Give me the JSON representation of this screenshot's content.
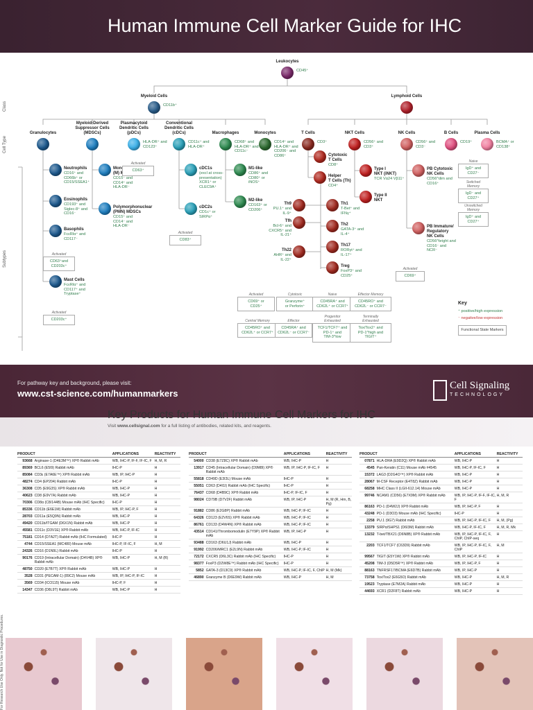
{
  "header": {
    "title": "Human Immune Cell Marker Guide for IHC"
  },
  "sidebar": [
    "Class",
    "Cell Type",
    "Subtypes"
  ],
  "nodes": [
    {
      "label": "Leukocytes",
      "markers": "CD45⁺",
      "color": "#7a2a6a"
    },
    {
      "label": "Myeloid Cells",
      "markers": "CD11b⁺",
      "color": "#2a5d8a"
    },
    {
      "label": "Lymphoid Cells",
      "markers": "",
      "color": "#b0202a"
    },
    {
      "label": "Granulocytes",
      "markers": "",
      "color": "#1e5a8e"
    },
    {
      "label": "Myeloid-Derived\nSuppressor Cells\n(MDSCs)",
      "markers": "",
      "color": "#1f7fc0"
    },
    {
      "label": "Plasmacytoid\nDendritic Cells\n(pDCs)",
      "markers": "HLA-DR⁺ and\nCD123⁺",
      "color": "#3bb0e8"
    },
    {
      "label": "Conventional\nDendritic Cells\n(cDCs)",
      "markers": "CD11c⁺ and\nHLA-DR⁺",
      "color": "#2aa0b8"
    },
    {
      "label": "Macrophages",
      "markers": "CD68⁺ and\nHLA-DR⁺ and\nCD11c⁻",
      "color": "#2e8a50"
    },
    {
      "label": "Monocytes",
      "markers": "CD14⁺ and\nHLA-DR⁺ and\nCD206⁻ and\nCD86⁺",
      "color": "#2d6a30"
    },
    {
      "label": "T Cells",
      "markers": "CD3⁺",
      "color": "#8a2a20"
    },
    {
      "label": "NKT Cells",
      "markers": "CD56⁺ and\nCD3⁺",
      "color": "#c02020"
    },
    {
      "label": "NK Cells",
      "markers": "CD56⁺ and\nCD3⁻",
      "color": "#d06060"
    },
    {
      "label": "B Cells",
      "markers": "CD19⁺",
      "color": "#e05080"
    },
    {
      "label": "Plasma Cells",
      "markers": "BCMA⁺ or\nCD138⁺",
      "color": "#f080a0"
    },
    {
      "label": "Neutrophils",
      "markers": "CD16⁺ and\nCD66b⁺ or\nCD15/SSEA1⁺",
      "color": "#1e5a8e"
    },
    {
      "label": "Eosinophils",
      "markers": "CD193⁺ and\nSiglec-8⁺ and\nCD16⁻",
      "color": "#1e5a8e"
    },
    {
      "label": "Basophils",
      "markers": "FcεRIα⁺ and\nCD117⁻",
      "color": "#1e5a8e"
    },
    {
      "label": "Mast Cells",
      "markers": "FcεRIα⁺ and\nCD117⁺ and\nTryptase⁺",
      "color": "#1e5a8e"
    },
    {
      "label": "Monocytic\n(M) MDSCs",
      "markers": "CD15⁻ and\nCD14⁺ and\nHLA-DR⁻",
      "color": "#1f7fc0"
    },
    {
      "label": "Polymorphonuclear\n(PMN) MDSCs",
      "markers": "CD15⁺ and\nCD14⁻ and\nHLA-DR⁻",
      "color": "#1f7fc0"
    },
    {
      "label": "cDC1s",
      "markers": "(excl at cross-\npresentation)\nXCR1⁺ or\nCLEC9A⁺",
      "color": "#2aa0b8"
    },
    {
      "label": "cDC2s",
      "markers": "CD1c⁺ or\nSIRPα⁺",
      "color": "#2aa0b8"
    },
    {
      "label": "M1-like",
      "markers": "CD86⁺ and\nCD80⁺ or\niNOS⁺",
      "color": "#2e8a50"
    },
    {
      "label": "M2-like",
      "markers": "CD163⁺ or\nCD206⁺",
      "color": "#2e8a50"
    },
    {
      "label": "Cytotoxic\nT Cells",
      "markers": "CD8⁺",
      "color": "#b02a20"
    },
    {
      "label": "Helper\nT Cells (Th)",
      "markers": "CD4⁺",
      "color": "#b02a20"
    },
    {
      "label": "Th9",
      "markers": "PU.1⁺ and\nIL-9⁺",
      "color": "#a02a20"
    },
    {
      "label": "Tfh",
      "markers": "Bcl-6⁺ and\nCXCR5⁺ and\nIL-21⁺",
      "color": "#a02a20"
    },
    {
      "label": "Th22",
      "markers": "AHR⁺ and\nIL-22⁺",
      "color": "#a02a20"
    },
    {
      "label": "Th1",
      "markers": "T-Bet⁺ and\nIFNγ⁺",
      "color": "#a02a20"
    },
    {
      "label": "Th2",
      "markers": "GATA-3⁺ and\nIL-4⁺",
      "color": "#a02a20"
    },
    {
      "label": "Th17",
      "markers": "RORγt⁺ and\nIL-17⁺",
      "color": "#a02a20"
    },
    {
      "label": "Treg",
      "markers": "FoxP3⁺ and\nCD25⁺",
      "color": "#a02a20"
    },
    {
      "label": "Type I\nNKT (iNKT)",
      "markers": "TCR Vα24 Vβ11⁺",
      "color": "#c02020"
    },
    {
      "label": "Type II\nNKT",
      "markers": "",
      "color": "#c02020"
    },
    {
      "label": "PB Cytotoxic\nNK Cells",
      "markers": "CD56^dim and\nCD16⁺",
      "color": "#d06060"
    },
    {
      "label": "PB Immature/\nRegulatory\nNK Cells",
      "markers": "CD56^bright and\nCD16⁻ and\nNCR⁻",
      "color": "#d06060"
    }
  ],
  "states": [
    {
      "caption": "Activated",
      "text": "CD63⁺"
    },
    {
      "caption": "Activated",
      "text": "CD83⁺"
    },
    {
      "caption": "Activated",
      "text": "CD63⁺and\nCD203c⁺"
    },
    {
      "caption": "Activated",
      "text": "CD203c⁺"
    },
    {
      "caption": "Activated",
      "text": "CD69⁺"
    },
    {
      "caption": "Naive",
      "text": "IgD⁺ and\nCD27⁻"
    },
    {
      "caption": "Switched\nMemory",
      "text": "IgD⁻ and\nCD27⁺"
    },
    {
      "caption": "Unswitched\nMemory",
      "text": "IgD⁺ and\nCD27⁺"
    },
    {
      "caption": "Cytotoxic",
      "text": "Granzyme⁺\nor Perforin⁺"
    },
    {
      "caption": "Activated",
      "text": "CD69⁺ or\nCD25⁺"
    },
    {
      "caption": "Naive",
      "text": "CD45RA⁺ and\nCD62L⁺ or CCR7⁺"
    },
    {
      "caption": "Effector Memory",
      "text": "CD45RO⁺ and\nCD62L⁻ or CCR7⁻"
    },
    {
      "caption": "Central Memory",
      "text": "CD45RO⁺ and\nCD62L⁺ or CCR7⁺"
    },
    {
      "caption": "Effector",
      "text": "CD45RA⁺ and\nCD62L⁻ or CCR7⁻"
    },
    {
      "caption": "Progenitor\nExhausted",
      "text": "TCF1/TCF7⁺ and\nPD-1⁺ and\nTIM-3^low"
    },
    {
      "caption": "Terminally\nExhausted",
      "text": "Tox/Tox2⁺ and\nPD-1^high and\nTIGIT⁺"
    }
  ],
  "key": {
    "title": "Key",
    "positive": "⁺ positive/high expression",
    "negative": "⁻ negative/low expression",
    "functional": "Functional State Markers"
  },
  "banner": {
    "intro": "For pathway key and background, please visit:",
    "url": "www.cst-science.com/humanmarkers",
    "logo": "Cell Signaling",
    "logo_sub": "TECHNOLOGY"
  },
  "products": {
    "title": "Key Products for Human Immune Cell Markers for IHC",
    "subtitle_pre": "Visit",
    "subtitle_link": "www.cellsignal.com",
    "subtitle_post": "for a full listing of antibodies, related kits, and reagents.",
    "headers": [
      "PRODUCT",
      "APPLICATIONS",
      "REACTIVITY"
    ],
    "columns": [
      [
        [
          "93668",
          "Arginase-1 (D4E3M™) XP® Rabbit mAb",
          "WB, IHC-P, IF-F, IF-IC, F",
          "H, M, R"
        ],
        [
          "89369",
          "BCL6 (E5I9) Rabbit mAb",
          "IHC-P",
          "H"
        ],
        [
          "85084",
          "CD3ε (E7A6E™) XP® Rabbit mAb",
          "WB, IP, IHC-P",
          "H"
        ],
        [
          "48274",
          "CD4 (EP204) Rabbit mAb",
          "IHC-P",
          "H"
        ],
        [
          "36308",
          "CD5 (E9G3S) XP® Rabbit mAb",
          "WB, IHC-P",
          "H"
        ],
        [
          "40623",
          "CD8 (E9V7A) Rabbit mAb",
          "WB, IHC-P",
          "H"
        ],
        [
          "70306",
          "CD8α (C8/144B) Mouse mAb (IHC Specific)",
          "IHC-P",
          "H"
        ],
        [
          "85336",
          "CD11b (E6E1M) Rabbit mAb",
          "WB, IP, IHC-P, F",
          "H"
        ],
        [
          "28703",
          "CD11a (E5Q9N) Rabbit mAb",
          "WB, IHC-P",
          "H"
        ],
        [
          "49420",
          "CD11b/ITGAM (D6X1N) Rabbit mAb",
          "WB, IHC-P",
          "H"
        ],
        [
          "45581",
          "CD11c (D3V1E) XP® Rabbit mAb",
          "WB, IHC-P, IF-IC",
          "H"
        ],
        [
          "75181",
          "CD14 (D7A2T) Rabbit mAb (IHC Formulated)",
          "IHC-P",
          "H"
        ],
        [
          "4744",
          "CD15/SSEA1 (MC480) Mouse mAb",
          "IHC-P, IF-IC, F",
          "H, M"
        ],
        [
          "24326",
          "CD16 (D1N9L) Rabbit mAb",
          "IHC-P",
          "H"
        ],
        [
          "90176",
          "CD19 (Intracellular Domain) (D4V4B) XP® Rabbit mAb",
          "WB, IHC-P",
          "H, M (R)"
        ],
        [
          "48750",
          "CD20 (E7B7T) XP® Rabbit mAb",
          "WB, IHC-P",
          "H"
        ],
        [
          "3528",
          "CD31 (PECAM-1) (89C2) Mouse mAb",
          "WB, IP, IHC-P, IF-IC",
          "H"
        ],
        [
          "3569",
          "CD34 (ICO115) Mouse mAb",
          "IHC-P, F",
          "H"
        ],
        [
          "14347",
          "CD36 (D8L9T) Rabbit mAb",
          "WB, IHC-P",
          "H"
        ]
      ],
      [
        [
          "54000",
          "CD38 (E7Z8C) XP® Rabbit mAb",
          "WB, IHC-P",
          "H"
        ],
        [
          "13917",
          "CD45 (Intracellular Domain) (D9M8I) XP® Rabbit mAb",
          "WB, IP, IHC-P, IF-IC, F",
          "H"
        ],
        [
          "55818",
          "CD49D (E3I3L) Mouse mAb",
          "IHC-P",
          "H"
        ],
        [
          "55051",
          "CD63 (D4I1I) Rabbit mAb (IHC Specific)",
          "IHC-P",
          "H"
        ],
        [
          "76437",
          "CD68 (D4B9C) XP® Rabbit mAb",
          "IHC-P, IF-IC, F",
          "H"
        ],
        [
          "98024",
          "CD79B (D7V2F) Rabbit mAb",
          "WB, IP, IHC-P",
          "H, M (R, Hm, B, Pg)"
        ],
        [
          "91882",
          "CD86 (E2G8P) Rabbit mAb",
          "WB, IHC-P, IF-IC",
          "H"
        ],
        [
          "64326",
          "CD123 (E2V6S) XP® Rabbit mAb",
          "WB, IHC-P, IF-IC",
          "H"
        ],
        [
          "86761",
          "CD133 (D4W4N) XP® Rabbit mAb",
          "WB, IHC-P, IF-IC",
          "H"
        ],
        [
          "43514",
          "CD141/Thrombomodulin (E7Y9P) XP® Rabbit mAb",
          "WB, IP, IHC-P",
          "H"
        ],
        [
          "93488",
          "CD163 (D6U1J) Rabbit mAb",
          "WB, IHC-P",
          "H"
        ],
        [
          "91992",
          "CD206/MRC1 (E2L9N) Rabbit mAb",
          "WB, IHC-P, IF-IC",
          "H"
        ],
        [
          "72172",
          "CXCR5 (D6L3C) Rabbit mAb (IHC Specific)",
          "IHC-P",
          "H"
        ],
        [
          "98377",
          "FoxP3 (D2W8E™) Rabbit mAb (IHC Specific)",
          "IHC-P",
          "H"
        ],
        [
          "5852",
          "GATA-3 (D13C9) XP® Rabbit mAb",
          "WB, IHC-P, IF-IC, F, ChIP",
          "H, M (Mk)"
        ],
        [
          "46890",
          "Granzyme B (D6E9W) Rabbit mAb",
          "WB, IHC-P",
          "H, M"
        ]
      ],
      [
        [
          "07871",
          "HLA-DRA (E9D2Q) XP® Rabbit mAb",
          "WB, IHC-P",
          "H"
        ],
        [
          "4545",
          "Pan-Keratin (C11) Mouse mAb #4545",
          "WB, IHC-P, IF-IC, F",
          "H"
        ],
        [
          "15372",
          "LAG3 (D2G4O™) XP® Rabbit mAb",
          "WB, IHC-P",
          "H"
        ],
        [
          "28067",
          "M-CSF Receptor (E4T8Z) Rabbit mAb",
          "WB, IHC-P",
          "H"
        ],
        [
          "68258",
          "MHC Class II (LGII-612.14) Mouse mAb",
          "WB, IHC-P",
          "H"
        ],
        [
          "99746",
          "NCAM1 (CD56) (E7X9M) XP® Rabbit mAb",
          "WB, IP, IHC-P, IF-F, IF-IC, F",
          "H, M, R"
        ],
        [
          "86163",
          "PD-1 (D4W2J) XP® Rabbit mAb",
          "WB, IP, IHC-P, F",
          "H"
        ],
        [
          "43248",
          "PD-1 (D3O3) Mouse mAb (IHC Specific)",
          "IHC-P",
          "H"
        ],
        [
          "2258",
          "PU.1 (9G7) Rabbit mAb",
          "WB, IP, IHC-P, IF-IC, F",
          "H, M, (Pg)"
        ],
        [
          "13379",
          "SIRPα/SHPS1 (D6I3M) Rabbit mAb",
          "WB, IHC-P, IF-IC, F",
          "H, M, R, Mk"
        ],
        [
          "13232",
          "T-bet/TBX21 (D6N8B) XP® Rabbit mAb",
          "WB, IP, IHC-P, IF-IC, F, ChIP, ChIP-seq",
          "H"
        ],
        [
          "2203",
          "TCF1/TCF7 (C63D9) Rabbit mAb",
          "WB, IP, IHC-P, IF-IC, F, ChIP",
          "H, M"
        ],
        [
          "99567",
          "TIGIT (E5Y1W) XP® Rabbit mAb",
          "WB, IP, IHC-P, IF-IC",
          "H"
        ],
        [
          "45208",
          "TIM-3 (D5D5R™) XP® Rabbit mAb",
          "WB, IP, IHC-P, F",
          "H"
        ],
        [
          "88163",
          "TNFRSF17/BCMA (E6D7B) Rabbit mAb",
          "WB, IP, IHC-P",
          "H"
        ],
        [
          "73758",
          "Tox/Tox2 (E6G5O) Rabbit mAb",
          "WB, IHC-P",
          "H, M, R"
        ],
        [
          "19523",
          "Tryptase (E7M2A) Rabbit mAb",
          "WB, IHC-P",
          "H"
        ],
        [
          "44693",
          "XCR1 (D2F8T) Rabbit mAb",
          "WB, IHC-P",
          "H"
        ]
      ]
    ]
  },
  "footer": {
    "disclaimer": "For Research Use Only. Not for Use in Diagnostic Procedures."
  }
}
